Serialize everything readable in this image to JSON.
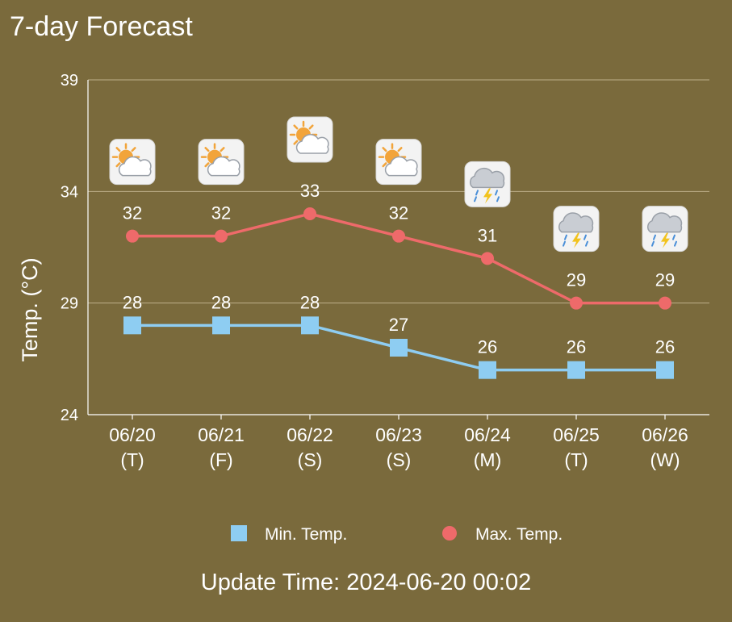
{
  "header": {
    "title": "7-day Forecast"
  },
  "footer": {
    "update_time": "Update Time: 2024-06-20 00:02"
  },
  "colors": {
    "min": "#8ecdf2",
    "max": "#ee6a6a",
    "grid": "#bfb08a",
    "background": "#7a6a3c"
  },
  "chart_data": {
    "type": "line",
    "ylabel": "Temp. (°C)",
    "ylim": [
      24,
      39
    ],
    "yticks": [
      24,
      29,
      34,
      39
    ],
    "categories": [
      {
        "date": "06/20",
        "day": "(T)",
        "icon": "partly-cloudy-icon"
      },
      {
        "date": "06/21",
        "day": "(F)",
        "icon": "partly-cloudy-icon"
      },
      {
        "date": "06/22",
        "day": "(S)",
        "icon": "partly-cloudy-icon"
      },
      {
        "date": "06/23",
        "day": "(S)",
        "icon": "partly-cloudy-icon"
      },
      {
        "date": "06/24",
        "day": "(M)",
        "icon": "thunderstorm-icon"
      },
      {
        "date": "06/25",
        "day": "(T)",
        "icon": "thunderstorm-icon"
      },
      {
        "date": "06/26",
        "day": "(W)",
        "icon": "thunderstorm-icon"
      }
    ],
    "series": [
      {
        "key": "min",
        "name": "Min. Temp.",
        "marker": "square",
        "values": [
          28,
          28,
          28,
          27,
          26,
          26,
          26
        ]
      },
      {
        "key": "max",
        "name": "Max. Temp.",
        "marker": "circle",
        "values": [
          32,
          32,
          33,
          32,
          31,
          29,
          29
        ]
      }
    ],
    "legend": "bottom"
  }
}
